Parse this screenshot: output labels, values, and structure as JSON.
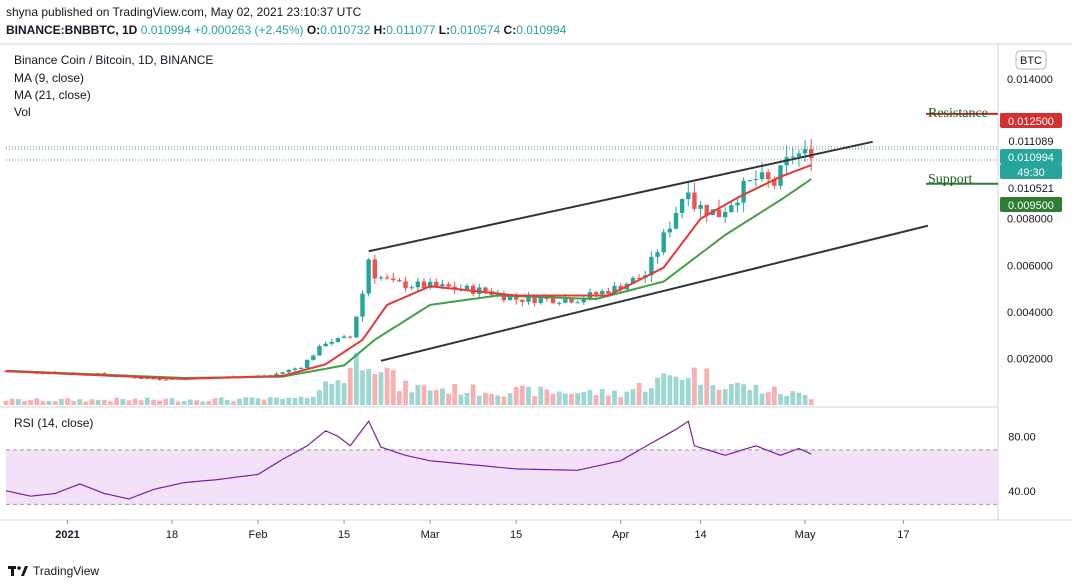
{
  "header": {
    "publisher_line": "shyna published on TradingView.com, May 02, 2021 23:10:37 UTC",
    "symbol": "BINANCE:BNBBTC, 1D",
    "last": "0.010994",
    "change": "+0.000263 (+2.45%)",
    "o_label": "O:",
    "o": "0.010732",
    "h_label": "H:",
    "h": "0.011077",
    "l_label": "L:",
    "l": "0.010574",
    "c_label": "C:",
    "c": "0.010994"
  },
  "legend": {
    "title": "Binance Coin / Bitcoin, 1D, BINANCE",
    "ma9": "MA (9, close)",
    "ma21": "MA (21, close)",
    "vol": "Vol",
    "rsi": "RSI (14, close)"
  },
  "currency_badge": "BTC",
  "annotations": {
    "resistance": "Resistance",
    "support": "Support"
  },
  "price_labels": [
    {
      "text": "0.012500",
      "bg": "#d32f2f",
      "color": "#ffffff",
      "value": 0.0125
    },
    {
      "text": "0.011089",
      "bg": "#ffffff",
      "color": "#131722",
      "value": 0.011089
    },
    {
      "text": "0.010994",
      "bg": "#26a69a",
      "color": "#ffffff",
      "value": 0.010994
    },
    {
      "text": "49:30",
      "bg": "#26a69a",
      "color": "#ffffff",
      "value": 0.010994
    },
    {
      "text": "0.010521",
      "bg": "#ffffff",
      "color": "#131722",
      "value": 0.010521
    },
    {
      "text": "0.009500",
      "bg": "#2e7d32",
      "color": "#ffffff",
      "value": 0.0095
    }
  ],
  "footer": {
    "brand": "TradingView"
  },
  "colors": {
    "up": "#26a69a",
    "down": "#ef5350",
    "ma9": "#e53935",
    "ma21": "#43a047",
    "trend": "#333333",
    "rsi": "#7b1fa2",
    "rsi_band": "#f3e1fa",
    "resistance": "#c62828",
    "support": "#2e7d32"
  },
  "chart_data": {
    "type": "candlestick",
    "y_ticks": [
      "0.014000",
      "0.008000",
      "0.006000",
      "0.004000",
      "0.002000"
    ],
    "y_tick_values": [
      0.014,
      0.008,
      0.006,
      0.004,
      0.002
    ],
    "ylim": [
      0.0,
      0.0155
    ],
    "x_ticks": [
      "2021",
      "18",
      "Feb",
      "15",
      "Mar",
      "15",
      "Apr",
      "14",
      "May",
      "17"
    ],
    "x_tick_dates": [
      "2021-01-01",
      "2021-01-18",
      "2021-02-01",
      "2021-02-15",
      "2021-03-01",
      "2021-03-15",
      "2021-04-01",
      "2021-04-14",
      "2021-05-01",
      "2021-05-17"
    ],
    "rsi_ticks": [
      "80.00",
      "40.00"
    ],
    "rsi_tick_values": [
      80,
      40
    ],
    "rsi_ylim": [
      20,
      100
    ],
    "rsi_band": [
      30,
      70
    ],
    "close_keypoints": [
      [
        "2020-12-22",
        0.00146
      ],
      [
        "2021-01-05",
        0.00134
      ],
      [
        "2021-01-15",
        0.00112
      ],
      [
        "2021-01-25",
        0.00118
      ],
      [
        "2021-02-03",
        0.00126
      ],
      [
        "2021-02-08",
        0.00165
      ],
      [
        "2021-02-12",
        0.0027
      ],
      [
        "2021-02-16",
        0.0029
      ],
      [
        "2021-02-18",
        0.0048
      ],
      [
        "2021-02-19",
        0.0063
      ],
      [
        "2021-02-20",
        0.0056
      ],
      [
        "2021-02-23",
        0.0052
      ],
      [
        "2021-03-01",
        0.0051
      ],
      [
        "2021-03-10",
        0.0049
      ],
      [
        "2021-03-15",
        0.00455
      ],
      [
        "2021-03-25",
        0.00455
      ],
      [
        "2021-03-31",
        0.005
      ],
      [
        "2021-04-05",
        0.0056
      ],
      [
        "2021-04-08",
        0.0072
      ],
      [
        "2021-04-12",
        0.0095
      ],
      [
        "2021-04-13",
        0.0086
      ],
      [
        "2021-04-17",
        0.0082
      ],
      [
        "2021-04-21",
        0.0093
      ],
      [
        "2021-04-23",
        0.0097
      ],
      [
        "2021-04-26",
        0.0095
      ],
      [
        "2021-04-29",
        0.0108
      ],
      [
        "2021-05-01",
        0.0107
      ],
      [
        "2021-05-02",
        0.010994
      ]
    ],
    "ma9_keypoints": [
      [
        "2020-12-22",
        0.00145
      ],
      [
        "2021-01-20",
        0.00112
      ],
      [
        "2021-02-05",
        0.00125
      ],
      [
        "2021-02-12",
        0.00175
      ],
      [
        "2021-02-18",
        0.0028
      ],
      [
        "2021-02-22",
        0.0043
      ],
      [
        "2021-03-01",
        0.0051
      ],
      [
        "2021-03-15",
        0.0047
      ],
      [
        "2021-03-30",
        0.0047
      ],
      [
        "2021-04-08",
        0.0059
      ],
      [
        "2021-04-14",
        0.008
      ],
      [
        "2021-04-20",
        0.0089
      ],
      [
        "2021-04-27",
        0.0098
      ],
      [
        "2021-05-02",
        0.0103
      ]
    ],
    "ma21_keypoints": [
      [
        "2020-12-22",
        0.00147
      ],
      [
        "2021-01-20",
        0.00116
      ],
      [
        "2021-02-05",
        0.00122
      ],
      [
        "2021-02-15",
        0.0017
      ],
      [
        "2021-02-20",
        0.0028
      ],
      [
        "2021-03-01",
        0.0043
      ],
      [
        "2021-03-12",
        0.0047
      ],
      [
        "2021-03-28",
        0.00455
      ],
      [
        "2021-04-08",
        0.0053
      ],
      [
        "2021-04-18",
        0.0073
      ],
      [
        "2021-04-27",
        0.0088
      ],
      [
        "2021-05-02",
        0.0097
      ]
    ],
    "rsi_keypoints": [
      [
        "2020-12-22",
        40
      ],
      [
        "2020-12-26",
        36
      ],
      [
        "2020-12-30",
        38
      ],
      [
        "2021-01-03",
        45
      ],
      [
        "2021-01-07",
        38
      ],
      [
        "2021-01-11",
        34
      ],
      [
        "2021-01-15",
        41
      ],
      [
        "2021-01-20",
        46
      ],
      [
        "2021-01-25",
        48
      ],
      [
        "2021-02-01",
        52
      ],
      [
        "2021-02-05",
        63
      ],
      [
        "2021-02-09",
        73
      ],
      [
        "2021-02-12",
        84
      ],
      [
        "2021-02-14",
        80
      ],
      [
        "2021-02-16",
        73
      ],
      [
        "2021-02-19",
        91
      ],
      [
        "2021-02-21",
        72
      ],
      [
        "2021-02-25",
        66
      ],
      [
        "2021-03-01",
        62
      ],
      [
        "2021-03-08",
        59
      ],
      [
        "2021-03-15",
        56
      ],
      [
        "2021-03-25",
        55
      ],
      [
        "2021-04-01",
        62
      ],
      [
        "2021-04-06",
        75
      ],
      [
        "2021-04-10",
        85
      ],
      [
        "2021-04-12",
        91
      ],
      [
        "2021-04-13",
        73
      ],
      [
        "2021-04-18",
        66
      ],
      [
        "2021-04-23",
        73
      ],
      [
        "2021-04-27",
        66
      ],
      [
        "2021-04-30",
        71
      ],
      [
        "2021-05-02",
        67
      ]
    ],
    "volume_keypoints": [
      [
        "2020-12-22",
        0.04
      ],
      [
        "2021-02-08",
        0.05
      ],
      [
        "2021-02-15",
        0.25
      ],
      [
        "2021-02-19",
        0.48
      ],
      [
        "2021-02-24",
        0.15
      ],
      [
        "2021-03-10",
        0.12
      ],
      [
        "2021-04-01",
        0.1
      ],
      [
        "2021-04-12",
        0.28
      ],
      [
        "2021-04-20",
        0.16
      ],
      [
        "2021-05-02",
        0.07
      ]
    ],
    "trendlines": [
      {
        "name": "upper",
        "from": [
          "2021-02-19",
          0.0066
        ],
        "to": [
          "2021-05-12",
          0.0113
        ]
      },
      {
        "name": "lower",
        "from": [
          "2021-02-21",
          0.0019
        ],
        "to": [
          "2021-05-21",
          0.0077
        ]
      }
    ],
    "levels": [
      {
        "name": "resistance",
        "value": 0.0125
      },
      {
        "name": "support",
        "value": 0.0095
      }
    ]
  }
}
